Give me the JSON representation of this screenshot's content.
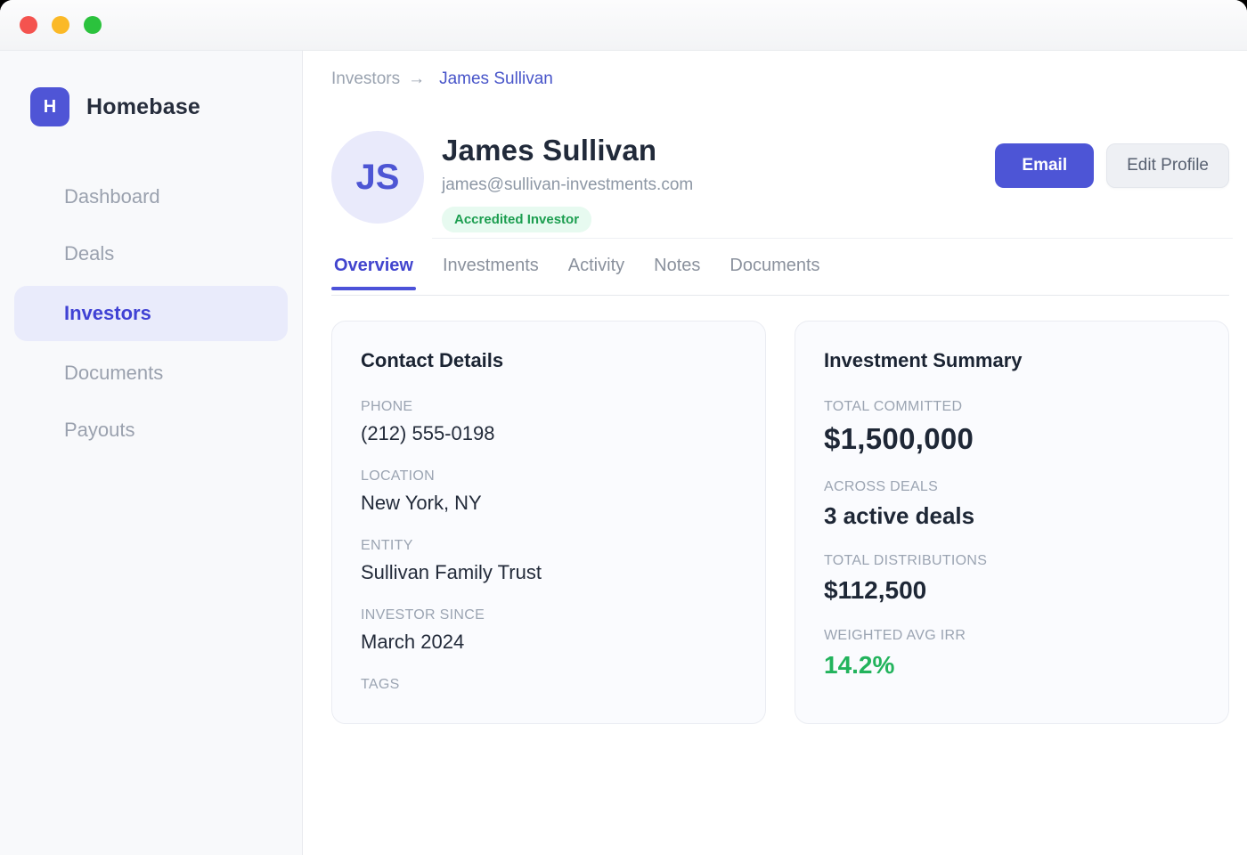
{
  "window": {
    "traffic_lights": {
      "close_color": "#f4534f",
      "minimize_color": "#fbb927",
      "maximize_color": "#2bc23d"
    }
  },
  "sidebar": {
    "logo": {
      "initial": "H",
      "name": "Homebase",
      "brand_color": "#4f55d6"
    },
    "items": [
      {
        "label": "Dashboard",
        "active": false
      },
      {
        "label": "Deals",
        "active": false
      },
      {
        "label": "Investors",
        "active": true
      },
      {
        "label": "Documents",
        "active": false
      },
      {
        "label": "Payouts",
        "active": false
      }
    ]
  },
  "breadcrumb": {
    "parent": "Investors",
    "separator": "→",
    "current": "James Sullivan"
  },
  "profile": {
    "initials": "JS",
    "name": "James Sullivan",
    "email": "james@sullivan-investments.com",
    "badge": "Accredited Investor",
    "badge_color": "#1c9e50",
    "actions": {
      "email_label": "Email",
      "edit_label": "Edit Profile"
    },
    "accent_color": "#4d55d6"
  },
  "tabs": [
    {
      "label": "Overview",
      "active": true
    },
    {
      "label": "Investments",
      "active": false
    },
    {
      "label": "Activity",
      "active": false
    },
    {
      "label": "Notes",
      "active": false
    },
    {
      "label": "Documents",
      "active": false
    }
  ],
  "contact_card": {
    "title": "Contact Details",
    "fields": [
      {
        "label": "PHONE",
        "value": "(212) 555-0198"
      },
      {
        "label": "LOCATION",
        "value": "New York, NY"
      },
      {
        "label": "ENTITY",
        "value": "Sullivan Family Trust"
      },
      {
        "label": "INVESTOR SINCE",
        "value": "March 2024"
      },
      {
        "label": "TAGS",
        "value": ""
      }
    ]
  },
  "summary_card": {
    "title": "Investment Summary",
    "fields": [
      {
        "label": "TOTAL COMMITTED",
        "value": "$1,500,000"
      },
      {
        "label": "ACROSS DEALS",
        "value": "3 active deals"
      },
      {
        "label": "TOTAL DISTRIBUTIONS",
        "value": "$112,500"
      },
      {
        "label": "WEIGHTED AVG IRR",
        "value": "14.2%",
        "value_color": "#22b35c"
      }
    ]
  }
}
